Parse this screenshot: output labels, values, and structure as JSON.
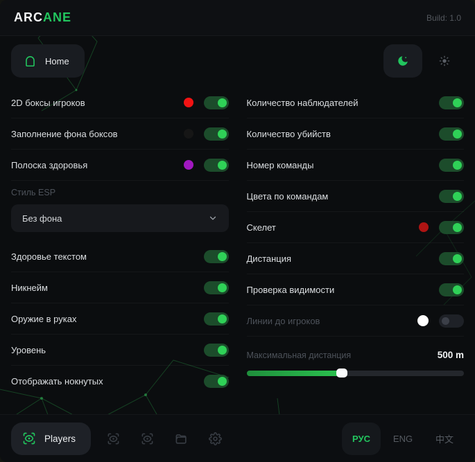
{
  "header": {
    "brand_white": "ARC",
    "brand_green": "ANE",
    "build": "Build: 1.0"
  },
  "nav": {
    "home_label": "Home"
  },
  "icons": {
    "home": "home-shield-icon",
    "moon": "moon-icon",
    "sun": "sun-icon",
    "players": "scan-eye-icon",
    "aim1": "scan-eye-icon",
    "aim2": "scan-eye-icon",
    "folder": "folder-icon",
    "gear": "gear-icon",
    "chevron": "chevron-down-icon"
  },
  "colors": {
    "accent": "#22c55e",
    "toggle_track_on": "#1c4c2b",
    "toggle_knob_on": "#2fd157",
    "dot_red": "#f21313",
    "dot_dark": "#161616",
    "dot_purple": "#a118c0",
    "dot_dark_red": "#ae1413",
    "dot_white": "#ffffff"
  },
  "left": {
    "rows": [
      {
        "label": "2D боксы игроков",
        "state": "on",
        "dot": "#f21313"
      },
      {
        "label": "Заполнение фона боксов",
        "state": "on",
        "dot": "#161616"
      },
      {
        "label": "Полоска здоровья",
        "state": "on",
        "dot": "#a118c0"
      },
      {
        "label": "Здоровье текстом",
        "state": "on"
      },
      {
        "label": "Никнейм",
        "state": "on"
      },
      {
        "label": "Оружие в руках",
        "state": "on"
      },
      {
        "label": "Уровень",
        "state": "on"
      },
      {
        "label": "Отображать нокнутых",
        "state": "on"
      }
    ],
    "select": {
      "label": "Стиль ESP",
      "value": "Без фона"
    }
  },
  "right": {
    "rows": [
      {
        "label": "Количество наблюдателей",
        "state": "on"
      },
      {
        "label": "Количество убийств",
        "state": "on"
      },
      {
        "label": "Номер команды",
        "state": "on"
      },
      {
        "label": "Цвета по командам",
        "state": "on"
      },
      {
        "label": "Скелет",
        "state": "on",
        "dot": "#ae1413"
      },
      {
        "label": "Дистанция",
        "state": "on"
      },
      {
        "label": "Проверка видимости",
        "state": "on"
      },
      {
        "label": "Линии до игроков",
        "state": "off",
        "dot": "#ffffff",
        "disabled": true
      }
    ],
    "slider": {
      "label": "Максимальная дистанция",
      "value": "500 m",
      "percent": 44
    }
  },
  "footer": {
    "players_label": "Players",
    "languages": [
      {
        "label": "РУС",
        "active": true
      },
      {
        "label": "ENG",
        "active": false
      },
      {
        "label": "中文",
        "active": false
      }
    ]
  }
}
